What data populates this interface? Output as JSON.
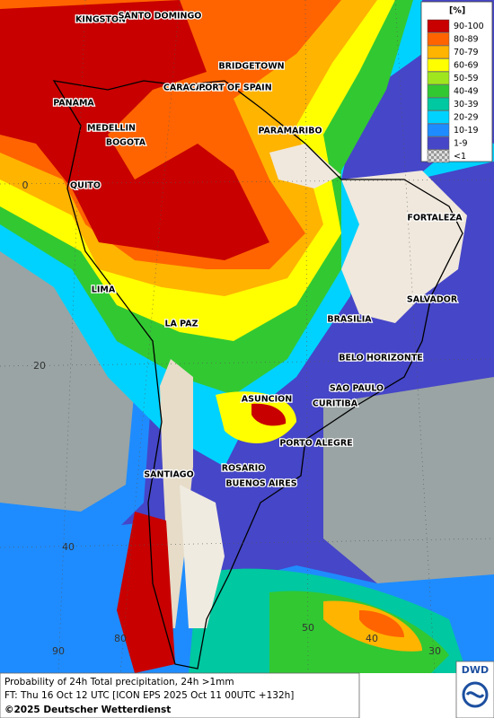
{
  "map": {
    "cities": [
      "KINGSTON",
      "SANTO DOMINGO",
      "BRIDGETOWN",
      "CARACAS",
      "PORT OF SPAIN",
      "PANAMA",
      "MEDELLIN",
      "BOGOTA",
      "PARAMARIBO",
      "QUITO",
      "FORTALEZA",
      "LIMA",
      "SALVADOR",
      "BRASILIA",
      "LA PAZ",
      "BELO HORIZONTE",
      "SAO PAULO",
      "ASUNCION",
      "CURITIBA",
      "PORTO ALEGRE",
      "SANTIAGO",
      "ROSARIO",
      "BUENOS AIRES"
    ],
    "grid_labels": [
      "0",
      "20",
      "40",
      "90",
      "80",
      "50",
      "40",
      "30"
    ],
    "legend": {
      "unit": "[%]",
      "items": [
        {
          "label": "90-100",
          "color": "#c80000"
        },
        {
          "label": "80-89",
          "color": "#ff6400"
        },
        {
          "label": "70-79",
          "color": "#ffb400"
        },
        {
          "label": "60-69",
          "color": "#ffff00"
        },
        {
          "label": "50-59",
          "color": "#a0e61e"
        },
        {
          "label": "40-49",
          "color": "#32c832"
        },
        {
          "label": "30-39",
          "color": "#00c8a0"
        },
        {
          "label": "20-29",
          "color": "#00d2ff"
        },
        {
          "label": "10-19",
          "color": "#1e8cff"
        },
        {
          "label": "1-9",
          "color": "#4646c8"
        },
        {
          "label": "<1",
          "color": "#b4b4b4"
        }
      ]
    },
    "footer": {
      "line1": "Probability of 24h Total precipitation, 24h >1mm",
      "line2": "FT: Thu 16 Oct 12 UTC [ICON EPS 2025 Oct 11 00UTC +132h]",
      "copyright": "©2025 Deutscher Wetterdienst"
    },
    "logo": "DWD"
  }
}
